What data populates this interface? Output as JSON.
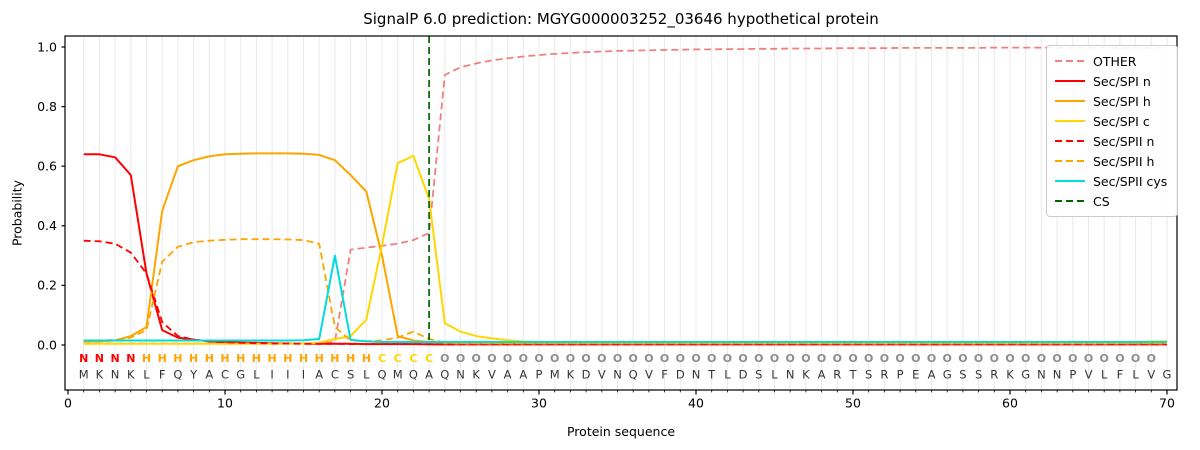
{
  "title": "SignalP 6.0 prediction: MGYG000003252_03646 hypothetical protein",
  "chart_data": {
    "type": "line",
    "title": "SignalP 6.0 prediction: MGYG000003252_03646 hypothetical protein",
    "xlabel": "Protein sequence",
    "ylabel": "Probability",
    "x_values": "residue positions 1-70",
    "xlim": [
      -0.2,
      70.6
    ],
    "ylim": [
      -0.15,
      1.04
    ],
    "x_ticks": [
      0,
      10,
      20,
      30,
      40,
      50,
      60,
      70
    ],
    "y_ticks": [
      0.0,
      0.2,
      0.4,
      0.6,
      0.8,
      1.0
    ],
    "grid": "light vertical gridline at every residue position",
    "legend_position": "upper right",
    "sequence": "MKNKLFQYACGLIIIACSLQMQAQNKVAAPMKDVNQVFDNTLDSLNKARTSRPEAGSSRKGNNPVLFLVG",
    "regions": "NNNNHHHHHHHHHHHHHHHCCCCOOOOOOOOOOOOOOOOOOOOOOOOOOOOOOOOOOOOOOOOOOOOOO",
    "region_colors": {
      "N": "#FF0000",
      "H": "#FFA500",
      "C": "#FFD700",
      "O": "#8C8C8C"
    },
    "sequence_color": "#333333",
    "cs_marker": {
      "label": "CS",
      "position": 23,
      "color": "#006400",
      "style": "dashed"
    },
    "series": [
      {
        "name": "OTHER",
        "color": "#F08080",
        "style": "dashed",
        "values": [
          0.005,
          0.005,
          0.005,
          0.005,
          0.005,
          0.005,
          0.005,
          0.005,
          0.005,
          0.005,
          0.005,
          0.005,
          0.005,
          0.005,
          0.005,
          0.005,
          0.01,
          0.32,
          0.327,
          0.333,
          0.34,
          0.352,
          0.376,
          0.906,
          0.932,
          0.945,
          0.955,
          0.962,
          0.968,
          0.973,
          0.977,
          0.98,
          0.983,
          0.985,
          0.987,
          0.988,
          0.989,
          0.99,
          0.991,
          0.992,
          0.992,
          0.993,
          0.993,
          0.994,
          0.994,
          0.995,
          0.995,
          0.995,
          0.996,
          0.996,
          0.996,
          0.996,
          0.997,
          0.997,
          0.997,
          0.997,
          0.997,
          0.997,
          0.998,
          0.998,
          0.998,
          0.998,
          0.998,
          0.998,
          0.998,
          0.998,
          0.998,
          0.998,
          0.998,
          0.998
        ]
      },
      {
        "name": "Sec/SPI n",
        "color": "#FF0000",
        "style": "solid",
        "values": [
          0.64,
          0.64,
          0.63,
          0.57,
          0.24,
          0.05,
          0.025,
          0.018,
          0.012,
          0.01,
          0.008,
          0.007,
          0.006,
          0.005,
          0.005,
          0.004,
          0.004,
          0.004,
          0.003,
          0.003,
          0.003,
          0.003,
          0.002,
          0.002,
          0.002,
          0.002,
          0.002,
          0.002,
          0.002,
          0.002,
          0.002,
          0.002,
          0.002,
          0.002,
          0.002,
          0.002,
          0.002,
          0.002,
          0.002,
          0.002,
          0.002,
          0.002,
          0.002,
          0.002,
          0.002,
          0.002,
          0.002,
          0.002,
          0.002,
          0.002,
          0.002,
          0.002,
          0.002,
          0.002,
          0.002,
          0.002,
          0.002,
          0.002,
          0.002,
          0.002,
          0.002,
          0.002,
          0.002,
          0.002,
          0.002,
          0.002,
          0.002,
          0.002,
          0.002,
          0.002
        ]
      },
      {
        "name": "Sec/SPI h",
        "color": "#FFA500",
        "style": "solid",
        "values": [
          0.012,
          0.012,
          0.015,
          0.03,
          0.06,
          0.45,
          0.6,
          0.62,
          0.633,
          0.64,
          0.642,
          0.643,
          0.643,
          0.643,
          0.642,
          0.638,
          0.62,
          0.57,
          0.515,
          0.3,
          0.03,
          0.015,
          0.01,
          0.006,
          0.005,
          0.005,
          0.005,
          0.005,
          0.005,
          0.005,
          0.005,
          0.005,
          0.005,
          0.005,
          0.005,
          0.005,
          0.005,
          0.005,
          0.005,
          0.005,
          0.005,
          0.005,
          0.005,
          0.005,
          0.005,
          0.005,
          0.005,
          0.005,
          0.005,
          0.005,
          0.005,
          0.005,
          0.005,
          0.005,
          0.005,
          0.005,
          0.005,
          0.005,
          0.005,
          0.005,
          0.005,
          0.005,
          0.005,
          0.005,
          0.005,
          0.005,
          0.005,
          0.005,
          0.005,
          0.005
        ]
      },
      {
        "name": "Sec/SPI c",
        "color": "#FFD700",
        "style": "solid",
        "values": [
          0.004,
          0.004,
          0.004,
          0.004,
          0.004,
          0.004,
          0.004,
          0.004,
          0.004,
          0.004,
          0.004,
          0.004,
          0.004,
          0.004,
          0.005,
          0.008,
          0.02,
          0.03,
          0.085,
          0.335,
          0.61,
          0.635,
          0.49,
          0.073,
          0.045,
          0.03,
          0.022,
          0.016,
          0.012,
          0.01,
          0.009,
          0.008,
          0.008,
          0.008,
          0.008,
          0.008,
          0.008,
          0.008,
          0.007,
          0.007,
          0.007,
          0.007,
          0.007,
          0.007,
          0.007,
          0.007,
          0.007,
          0.006,
          0.006,
          0.006,
          0.006,
          0.006,
          0.006,
          0.006,
          0.006,
          0.006,
          0.006,
          0.006,
          0.006,
          0.006,
          0.006,
          0.006,
          0.006,
          0.006,
          0.006,
          0.006,
          0.007,
          0.01,
          0.012,
          0.012
        ]
      },
      {
        "name": "Sec/SPII n",
        "color": "#FF0000",
        "style": "dashed",
        "values": [
          0.35,
          0.348,
          0.34,
          0.31,
          0.24,
          0.077,
          0.03,
          0.018,
          0.012,
          0.009,
          0.007,
          0.006,
          0.005,
          0.005,
          0.004,
          0.004,
          0.004,
          0.003,
          0.003,
          0.003,
          0.003,
          0.003,
          0.003,
          0.002,
          0.002,
          0.002,
          0.002,
          0.002,
          0.002,
          0.002,
          0.002,
          0.002,
          0.002,
          0.002,
          0.002,
          0.002,
          0.002,
          0.002,
          0.002,
          0.002,
          0.002,
          0.002,
          0.002,
          0.002,
          0.002,
          0.002,
          0.002,
          0.002,
          0.002,
          0.002,
          0.002,
          0.002,
          0.002,
          0.002,
          0.002,
          0.002,
          0.002,
          0.002,
          0.002,
          0.002,
          0.002,
          0.002,
          0.002,
          0.002,
          0.002,
          0.002,
          0.002,
          0.002,
          0.002,
          0.002
        ]
      },
      {
        "name": "Sec/SPII h",
        "color": "#FFA500",
        "style": "dashed",
        "values": [
          0.015,
          0.015,
          0.017,
          0.025,
          0.05,
          0.28,
          0.33,
          0.345,
          0.35,
          0.353,
          0.355,
          0.355,
          0.355,
          0.354,
          0.352,
          0.34,
          0.06,
          0.015,
          0.013,
          0.015,
          0.025,
          0.045,
          0.02,
          0.008,
          0.006,
          0.006,
          0.006,
          0.006,
          0.006,
          0.006,
          0.006,
          0.006,
          0.006,
          0.006,
          0.006,
          0.006,
          0.006,
          0.006,
          0.006,
          0.006,
          0.006,
          0.006,
          0.006,
          0.006,
          0.006,
          0.006,
          0.006,
          0.006,
          0.006,
          0.006,
          0.006,
          0.006,
          0.006,
          0.006,
          0.006,
          0.006,
          0.006,
          0.006,
          0.006,
          0.006,
          0.006,
          0.006,
          0.006,
          0.006,
          0.006,
          0.006,
          0.006,
          0.006,
          0.006,
          0.006
        ]
      },
      {
        "name": "Sec/SPII cys",
        "color": "#00DCDC",
        "style": "solid",
        "values": [
          0.015,
          0.015,
          0.015,
          0.015,
          0.015,
          0.015,
          0.015,
          0.015,
          0.015,
          0.015,
          0.015,
          0.015,
          0.015,
          0.015,
          0.016,
          0.02,
          0.3,
          0.017,
          0.012,
          0.01,
          0.01,
          0.01,
          0.01,
          0.01,
          0.01,
          0.01,
          0.01,
          0.01,
          0.01,
          0.01,
          0.01,
          0.01,
          0.01,
          0.01,
          0.01,
          0.01,
          0.01,
          0.01,
          0.01,
          0.01,
          0.01,
          0.01,
          0.01,
          0.01,
          0.01,
          0.01,
          0.01,
          0.01,
          0.01,
          0.01,
          0.01,
          0.01,
          0.01,
          0.01,
          0.01,
          0.01,
          0.01,
          0.01,
          0.01,
          0.01,
          0.01,
          0.01,
          0.01,
          0.01,
          0.01,
          0.01,
          0.01,
          0.01,
          0.01,
          0.01
        ]
      }
    ]
  },
  "legend": {
    "items": [
      {
        "label": "OTHER",
        "color": "#F08080",
        "dashed": true
      },
      {
        "label": "Sec/SPI n",
        "color": "#FF0000",
        "dashed": false
      },
      {
        "label": "Sec/SPI h",
        "color": "#FFA500",
        "dashed": false
      },
      {
        "label": "Sec/SPI c",
        "color": "#FFD700",
        "dashed": false
      },
      {
        "label": "Sec/SPII n",
        "color": "#FF0000",
        "dashed": true
      },
      {
        "label": "Sec/SPII h",
        "color": "#FFA500",
        "dashed": true
      },
      {
        "label": "Sec/SPII cys",
        "color": "#00DCDC",
        "dashed": false
      },
      {
        "label": "CS",
        "color": "#006400",
        "dashed": true
      }
    ]
  },
  "axes": {
    "xlabel": "Protein sequence",
    "ylabel": "Probability"
  }
}
